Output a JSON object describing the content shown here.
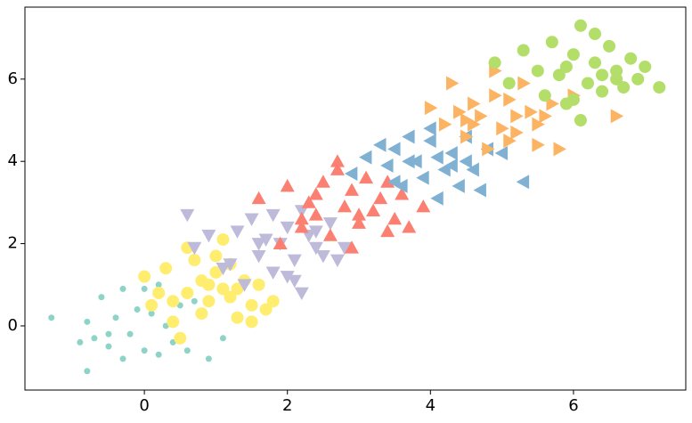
{
  "chart_data": {
    "type": "scatter",
    "xlim": [
      -1.67,
      7.57
    ],
    "ylim": [
      -1.56,
      7.75
    ],
    "xticks": [
      0,
      2,
      4,
      6
    ],
    "yticks": [
      0,
      2,
      4,
      6
    ],
    "grid": false,
    "series": [
      {
        "color": "#8dd3c7",
        "marker": "circle",
        "size": 3.5,
        "x": [
          -1.3,
          -0.9,
          -0.8,
          -0.7,
          -0.6,
          -0.5,
          -0.4,
          -0.3,
          -0.2,
          -0.1,
          0,
          0.1,
          0.2,
          0.3,
          0.4,
          0.5,
          0.6,
          0.9,
          1.1,
          -0.8,
          -0.3,
          0.2,
          0.7,
          -0.5,
          0.0
        ],
        "values": [
          0.2,
          -0.4,
          -1.1,
          -0.3,
          0.7,
          -0.5,
          0.2,
          0.9,
          -0.2,
          0.4,
          -0.6,
          0.3,
          -0.7,
          0.0,
          -0.4,
          0.5,
          -0.6,
          -0.8,
          -0.3,
          0.1,
          -0.8,
          1.0,
          0.6,
          -0.2,
          0.9
        ]
      },
      {
        "color": "#ffed6f",
        "marker": "circle",
        "size": 7,
        "x": [
          0.0,
          0.1,
          0.3,
          0.4,
          0.5,
          0.6,
          0.7,
          0.8,
          0.9,
          1.0,
          1.1,
          1.2,
          1.3,
          1.4,
          1.5,
          1.6,
          1.7,
          1.8,
          0.2,
          0.6,
          0.9,
          1.2,
          1.5,
          0.8,
          1.1,
          0.4,
          1.0,
          1.3
        ],
        "values": [
          1.2,
          0.5,
          1.4,
          0.1,
          -0.3,
          0.8,
          1.6,
          0.3,
          1.0,
          1.3,
          2.1,
          0.7,
          0.2,
          1.1,
          0.5,
          1.0,
          0.4,
          0.6,
          0.8,
          1.9,
          0.6,
          1.5,
          0.1,
          1.1,
          0.9,
          0.6,
          1.7,
          0.9
        ]
      },
      {
        "color": "#bebada",
        "marker": "down",
        "size": 8,
        "x": [
          0.6,
          0.7,
          0.9,
          1.1,
          1.3,
          1.5,
          1.6,
          1.7,
          1.8,
          1.9,
          2.0,
          2.1,
          2.2,
          2.3,
          2.4,
          2.5,
          2.6,
          2.7,
          1.4,
          1.8,
          2.0,
          2.2,
          2.1,
          1.6,
          2.4,
          1.2,
          2.8
        ],
        "values": [
          2.7,
          1.9,
          2.2,
          1.4,
          2.3,
          2.6,
          1.7,
          2.1,
          1.3,
          2.0,
          2.4,
          1.6,
          0.8,
          2.2,
          1.9,
          1.7,
          2.5,
          1.6,
          1.0,
          2.7,
          1.2,
          2.8,
          1.1,
          2.0,
          2.3,
          1.5,
          1.9
        ]
      },
      {
        "color": "#fb8072",
        "marker": "up",
        "size": 8,
        "x": [
          1.6,
          1.9,
          2.0,
          2.2,
          2.3,
          2.4,
          2.5,
          2.6,
          2.7,
          2.8,
          2.9,
          3.0,
          3.1,
          3.2,
          3.3,
          3.4,
          3.5,
          3.6,
          3.7,
          2.7,
          3.0,
          2.4,
          2.9,
          3.4,
          3.9,
          2.2
        ],
        "values": [
          3.1,
          2.0,
          3.4,
          2.6,
          3.0,
          2.7,
          3.5,
          2.2,
          3.8,
          2.9,
          3.3,
          2.5,
          3.6,
          2.8,
          3.1,
          2.3,
          2.6,
          3.2,
          2.4,
          4.0,
          2.7,
          3.2,
          1.9,
          3.5,
          2.9,
          2.4
        ]
      },
      {
        "color": "#80b1d3",
        "marker": "left",
        "size": 8,
        "x": [
          2.9,
          3.1,
          3.3,
          3.4,
          3.5,
          3.6,
          3.7,
          3.8,
          3.9,
          4.0,
          4.1,
          4.2,
          4.3,
          4.4,
          4.5,
          4.6,
          4.7,
          4.8,
          5.0,
          5.3,
          3.7,
          4.1,
          4.0,
          4.5,
          3.5,
          4.3
        ],
        "values": [
          3.7,
          4.1,
          4.4,
          3.9,
          4.3,
          3.4,
          4.6,
          4.0,
          3.6,
          4.5,
          4.1,
          3.8,
          4.2,
          3.4,
          4.6,
          3.8,
          3.3,
          4.3,
          4.2,
          3.5,
          4.0,
          3.1,
          4.8,
          4.0,
          3.5,
          3.9
        ]
      },
      {
        "color": "#fdb462",
        "marker": "right",
        "size": 8,
        "x": [
          4.0,
          4.2,
          4.3,
          4.4,
          4.5,
          4.6,
          4.7,
          4.8,
          4.9,
          5.0,
          5.1,
          5.2,
          5.3,
          5.4,
          5.5,
          5.6,
          5.7,
          5.8,
          6.0,
          6.6,
          4.5,
          4.9,
          5.2,
          5.1,
          4.6,
          5.5
        ],
        "values": [
          5.3,
          4.9,
          5.9,
          5.2,
          4.6,
          5.4,
          5.1,
          4.3,
          5.6,
          4.8,
          5.5,
          4.7,
          5.9,
          5.2,
          4.4,
          5.1,
          5.4,
          4.3,
          5.6,
          5.1,
          5.0,
          6.2,
          5.1,
          4.5,
          4.9,
          4.9
        ]
      },
      {
        "color": "#b3de69",
        "marker": "circle",
        "size": 7,
        "x": [
          4.9,
          5.1,
          5.3,
          5.5,
          5.6,
          5.7,
          5.8,
          5.9,
          6.0,
          6.1,
          6.2,
          6.3,
          6.4,
          6.5,
          6.6,
          6.7,
          6.8,
          6.9,
          7.0,
          7.2,
          6.1,
          6.4,
          5.9,
          6.3,
          6.0,
          6.6
        ],
        "values": [
          6.4,
          5.9,
          6.7,
          6.2,
          5.6,
          6.9,
          6.1,
          5.4,
          6.6,
          7.3,
          5.9,
          6.4,
          5.7,
          6.8,
          6.2,
          5.8,
          6.5,
          6.0,
          6.3,
          5.8,
          5.0,
          6.1,
          6.3,
          7.1,
          5.5,
          6.0
        ]
      }
    ]
  }
}
